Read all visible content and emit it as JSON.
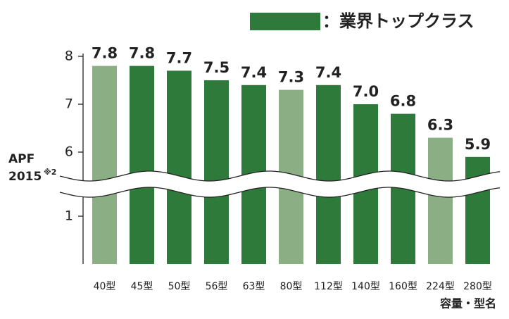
{
  "chart_data": {
    "type": "bar",
    "legend": {
      "label": "：業界トップクラス",
      "color": "#2e7a3a"
    },
    "categories": [
      "40型",
      "45型",
      "50型",
      "56型",
      "63型",
      "80型",
      "112型",
      "140型",
      "160型",
      "224型",
      "280型"
    ],
    "values": [
      7.8,
      7.8,
      7.7,
      7.5,
      7.4,
      7.3,
      7.4,
      7.0,
      6.8,
      6.3,
      5.9
    ],
    "value_labels": [
      "7.8",
      "7.8",
      "7.7",
      "7.5",
      "7.4",
      "7.3",
      "7.4",
      "7.0",
      "6.8",
      "6.3",
      "5.9"
    ],
    "colors": [
      "#8cae84",
      "#2e7a3a",
      "#2e7a3a",
      "#2e7a3a",
      "#2e7a3a",
      "#8cae84",
      "#2e7a3a",
      "#2e7a3a",
      "#2e7a3a",
      "#8cae84",
      "#2e7a3a"
    ],
    "ylim": [
      0,
      8
    ],
    "yticks": [
      1,
      6,
      7,
      8
    ],
    "axis_break": [
      1.5,
      5.5
    ],
    "ylabel": [
      "APF",
      "2015"
    ],
    "ylabel_note": "※2",
    "xlabel": "容量・型名"
  }
}
